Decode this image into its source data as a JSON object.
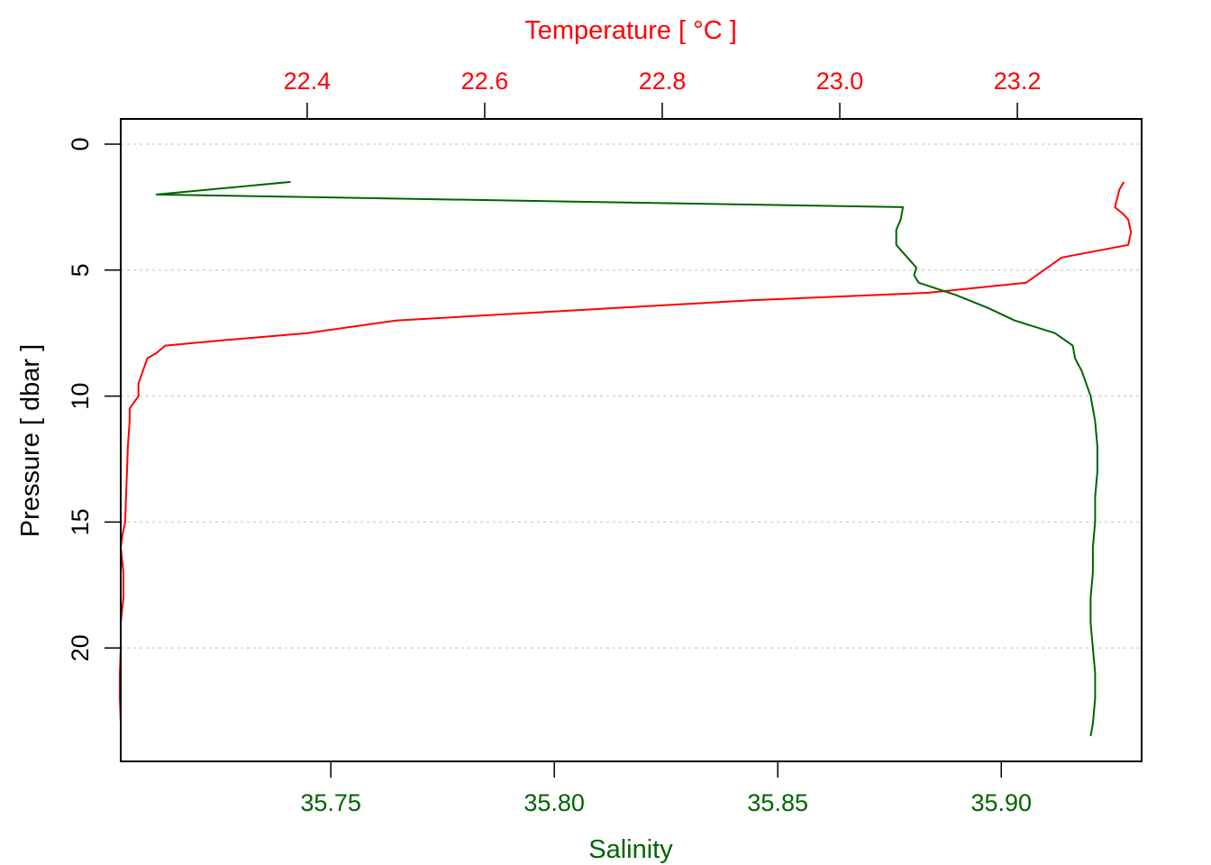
{
  "chart_data": {
    "type": "line",
    "xlabel_top": "Temperature [ °C ]",
    "xlabel_bottom": "Salinity",
    "ylabel": "Pressure [ dbar ]",
    "ylim": [
      24.5,
      -1
    ],
    "y_reversed": true,
    "temperature_axis": {
      "xlim": [
        22.19,
        23.34
      ],
      "ticks": [
        "22.4",
        "22.6",
        "22.8",
        "23.0",
        "23.2"
      ]
    },
    "salinity_axis": {
      "xlim": [
        35.703,
        35.9314
      ],
      "ticks": [
        "35.75",
        "35.80",
        "35.85",
        "35.90"
      ]
    },
    "pressure_ticks": [
      "0",
      "5",
      "10",
      "15",
      "20"
    ],
    "grid": {
      "horizontal": true,
      "style": "dotted",
      "color": "#d3d3d3"
    },
    "colors": {
      "temperature": "#ff0000",
      "salinity": "#006400",
      "axis": "#000000",
      "grid": "#d3d3d3"
    },
    "series": [
      {
        "axis": "top",
        "color": "#ff0000",
        "points": [
          [
            23.32,
            1.5
          ],
          [
            23.315,
            1.8
          ],
          [
            23.31,
            2.5
          ],
          [
            23.32,
            2.8
          ],
          [
            23.325,
            3.0
          ],
          [
            23.328,
            3.5
          ],
          [
            23.325,
            4.0
          ],
          [
            23.25,
            4.5
          ],
          [
            23.23,
            5.0
          ],
          [
            23.21,
            5.5
          ],
          [
            23.1,
            5.9
          ],
          [
            22.9,
            6.2
          ],
          [
            22.7,
            6.6
          ],
          [
            22.5,
            7.0
          ],
          [
            22.4,
            7.5
          ],
          [
            22.3,
            7.8
          ],
          [
            22.24,
            8.0
          ],
          [
            22.23,
            8.3
          ],
          [
            22.22,
            8.5
          ],
          [
            22.215,
            9.0
          ],
          [
            22.21,
            9.5
          ],
          [
            22.21,
            10.0
          ],
          [
            22.2,
            10.5
          ],
          [
            22.2,
            11.0
          ],
          [
            22.198,
            12.0
          ],
          [
            22.197,
            13.0
          ],
          [
            22.196,
            14.0
          ],
          [
            22.195,
            15.0
          ],
          [
            22.192,
            15.5
          ],
          [
            22.19,
            16.0
          ],
          [
            22.193,
            17.0
          ],
          [
            22.193,
            18.0
          ],
          [
            22.19,
            19.0
          ],
          [
            22.19,
            20.0
          ],
          [
            22.189,
            21.0
          ],
          [
            22.189,
            22.0
          ],
          [
            22.19,
            23.0
          ],
          [
            22.19,
            23.5
          ]
        ]
      },
      {
        "axis": "bottom",
        "color": "#006400",
        "points": [
          [
            35.741,
            1.5
          ],
          [
            35.711,
            2.0
          ],
          [
            35.878,
            2.5
          ],
          [
            35.8775,
            3.0
          ],
          [
            35.8765,
            3.4
          ],
          [
            35.8765,
            4.0
          ],
          [
            35.879,
            4.5
          ],
          [
            35.881,
            4.9
          ],
          [
            35.8805,
            5.2
          ],
          [
            35.8815,
            5.5
          ],
          [
            35.89,
            6.0
          ],
          [
            35.897,
            6.5
          ],
          [
            35.903,
            7.0
          ],
          [
            35.912,
            7.5
          ],
          [
            35.916,
            8.0
          ],
          [
            35.9165,
            8.5
          ],
          [
            35.918,
            9.0
          ],
          [
            35.919,
            9.5
          ],
          [
            35.92,
            10.0
          ],
          [
            35.921,
            11.0
          ],
          [
            35.9215,
            12.0
          ],
          [
            35.9215,
            13.0
          ],
          [
            35.921,
            14.0
          ],
          [
            35.921,
            15.0
          ],
          [
            35.9205,
            16.0
          ],
          [
            35.9205,
            17.0
          ],
          [
            35.92,
            18.0
          ],
          [
            35.92,
            19.0
          ],
          [
            35.9205,
            20.0
          ],
          [
            35.921,
            21.0
          ],
          [
            35.921,
            22.0
          ],
          [
            35.9205,
            23.0
          ],
          [
            35.92,
            23.5
          ]
        ]
      }
    ]
  }
}
